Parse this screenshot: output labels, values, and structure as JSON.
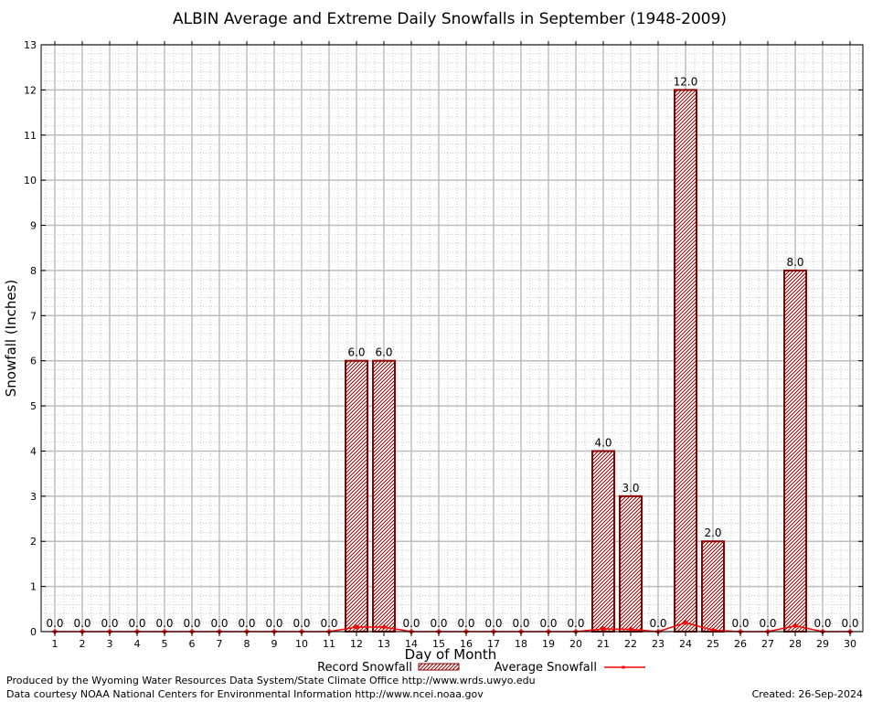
{
  "chart_data": {
    "type": "bar",
    "title": "ALBIN Average and Extreme Daily Snowfalls in September (1948-2009)",
    "xlabel": "Day of Month",
    "ylabel": "Snowfall (Inches)",
    "ylim": [
      0,
      13
    ],
    "yticks": [
      "0",
      "1",
      "2",
      "3",
      "4",
      "5",
      "6",
      "7",
      "8",
      "9",
      "10",
      "11",
      "12",
      "13"
    ],
    "categories": [
      "1",
      "2",
      "3",
      "4",
      "5",
      "6",
      "7",
      "8",
      "9",
      "10",
      "11",
      "12",
      "13",
      "14",
      "15",
      "16",
      "17",
      "18",
      "19",
      "20",
      "21",
      "22",
      "23",
      "24",
      "25",
      "26",
      "27",
      "28",
      "29",
      "30"
    ],
    "series": [
      {
        "name": "Record Snowfall",
        "kind": "bar",
        "values": [
          0,
          0,
          0,
          0,
          0,
          0,
          0,
          0,
          0,
          0,
          0,
          6,
          6,
          0,
          0,
          0,
          0,
          0,
          0,
          0,
          4,
          3,
          0,
          12,
          2,
          0,
          0,
          8,
          0,
          0
        ],
        "labels": [
          "0.0",
          "0.0",
          "0.0",
          "0.0",
          "0.0",
          "0.0",
          "0.0",
          "0.0",
          "0.0",
          "0.0",
          "0.0",
          "6.0",
          "6.0",
          "0.0",
          "0.0",
          "0.0",
          "0.0",
          "0.0",
          "0.0",
          "0.0",
          "4.0",
          "3.0",
          "0.0",
          "12.0",
          "2.0",
          "0.0",
          "0.0",
          "8.0",
          "0.0",
          "0.0"
        ],
        "color": "#8b0000"
      },
      {
        "name": "Average Snowfall",
        "kind": "line",
        "values": [
          0,
          0,
          0,
          0,
          0,
          0,
          0,
          0,
          0,
          0,
          0,
          0.1,
          0.1,
          0,
          0,
          0,
          0,
          0,
          0,
          0,
          0.06,
          0.05,
          0,
          0.2,
          0.03,
          0,
          0,
          0.13,
          0,
          0
        ],
        "color": "#ff0000"
      }
    ],
    "grid": true,
    "legend": "bottom"
  },
  "footer": {
    "produced_by": "Produced by the Wyoming Water Resources Data System/State Climate Office http://www.wrds.uwyo.edu",
    "courtesy": "Data courtesy NOAA National Centers for Environmental Information http://www.ncei.noaa.gov",
    "created": "Created: 26-Sep-2024"
  }
}
